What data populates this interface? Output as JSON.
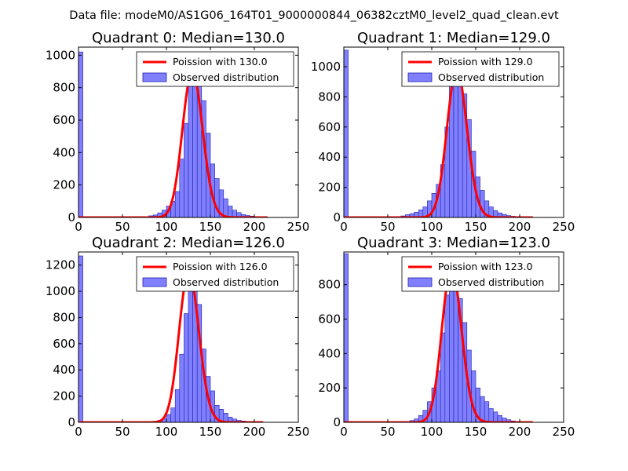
{
  "figure_title": "Data file: modeM0/AS1G06_164T01_9000000844_06382cztM0_level2_quad_clean.evt",
  "colors": {
    "bar_fill": "#8080ff",
    "bar_edge": "#1f1fb0",
    "line": "#ff0000",
    "axes": "#000000"
  },
  "chart_data": [
    {
      "type": "bar",
      "title": "Quadrant 0: Median=130.0",
      "median": 130.0,
      "xlim": [
        0,
        250
      ],
      "ylim": [
        0,
        1050
      ],
      "xticks": [
        0,
        50,
        100,
        150,
        200,
        250
      ],
      "yticks": [
        0,
        200,
        400,
        600,
        800,
        1000
      ],
      "bin_width": 5,
      "hist": {
        "name": "Observed distribution",
        "bins": [
          0,
          80,
          85,
          90,
          95,
          100,
          105,
          110,
          115,
          120,
          125,
          130,
          135,
          140,
          145,
          150,
          155,
          160,
          165,
          170,
          175,
          180,
          185,
          190,
          195,
          200,
          205,
          210
        ],
        "values": [
          1020,
          10,
          15,
          28,
          45,
          70,
          100,
          160,
          360,
          580,
          820,
          900,
          860,
          720,
          520,
          330,
          240,
          170,
          115,
          70,
          45,
          30,
          18,
          12,
          8,
          5,
          3,
          2
        ]
      },
      "line": {
        "name": "Poission with 130.0",
        "mean": 130.0,
        "x_range": [
          0,
          215
        ]
      },
      "legend": {
        "loc": "upper right",
        "entries": [
          "Poission with 130.0",
          "Observed distribution"
        ]
      }
    },
    {
      "type": "bar",
      "title": "Quadrant 1: Median=129.0",
      "median": 129.0,
      "xlim": [
        0,
        250
      ],
      "ylim": [
        0,
        1130
      ],
      "xticks": [
        0,
        50,
        100,
        150,
        200,
        250
      ],
      "yticks": [
        0,
        200,
        400,
        600,
        800,
        1000
      ],
      "bin_width": 5,
      "hist": {
        "name": "Observed distribution",
        "bins": [
          0,
          60,
          65,
          70,
          75,
          80,
          85,
          90,
          95,
          100,
          105,
          110,
          115,
          120,
          125,
          130,
          135,
          140,
          145,
          150,
          155,
          160,
          165,
          170,
          175,
          180,
          185,
          190,
          195,
          200
        ],
        "values": [
          1110,
          5,
          10,
          18,
          25,
          35,
          50,
          70,
          110,
          160,
          220,
          350,
          600,
          880,
          970,
          980,
          820,
          650,
          440,
          270,
          180,
          110,
          70,
          45,
          30,
          20,
          12,
          8,
          5,
          3
        ]
      },
      "line": {
        "name": "Poission with 129.0",
        "mean": 129.0,
        "x_range": [
          0,
          215
        ]
      },
      "legend": {
        "loc": "upper right",
        "entries": [
          "Poission with 129.0",
          "Observed distribution"
        ]
      }
    },
    {
      "type": "bar",
      "title": "Quadrant 2: Median=126.0",
      "median": 126.0,
      "xlim": [
        0,
        250
      ],
      "ylim": [
        0,
        1300
      ],
      "xticks": [
        0,
        50,
        100,
        150,
        200,
        250
      ],
      "yticks": [
        0,
        200,
        400,
        600,
        800,
        1000,
        1200
      ],
      "bin_width": 5,
      "hist": {
        "name": "Observed distribution",
        "bins": [
          0,
          85,
          90,
          95,
          100,
          105,
          110,
          115,
          120,
          125,
          130,
          135,
          140,
          145,
          150,
          155,
          160,
          165,
          170,
          175,
          180,
          185,
          190,
          195,
          200,
          205
        ],
        "values": [
          1270,
          8,
          15,
          30,
          60,
          110,
          250,
          520,
          830,
          1150,
          1120,
          900,
          560,
          350,
          240,
          130,
          100,
          70,
          40,
          25,
          15,
          10,
          6,
          4,
          2,
          1
        ]
      },
      "line": {
        "name": "Poission with 126.0",
        "mean": 126.0,
        "x_range": [
          0,
          210
        ]
      },
      "legend": {
        "loc": "upper right",
        "entries": [
          "Poission with 126.0",
          "Observed distribution"
        ]
      }
    },
    {
      "type": "bar",
      "title": "Quadrant 3: Median=123.0",
      "median": 123.0,
      "xlim": [
        0,
        250
      ],
      "ylim": [
        0,
        990
      ],
      "xticks": [
        0,
        50,
        100,
        150,
        200,
        250
      ],
      "yticks": [
        0,
        200,
        400,
        600,
        800
      ],
      "bin_width": 5,
      "hist": {
        "name": "Observed distribution",
        "bins": [
          0,
          75,
          80,
          85,
          90,
          95,
          100,
          105,
          110,
          115,
          120,
          125,
          130,
          135,
          140,
          145,
          150,
          155,
          160,
          165,
          170,
          175,
          180,
          185,
          190,
          195
        ],
        "values": [
          980,
          10,
          20,
          40,
          70,
          120,
          200,
          300,
          520,
          740,
          880,
          900,
          720,
          580,
          420,
          300,
          200,
          150,
          120,
          80,
          60,
          40,
          25,
          15,
          8,
          4
        ]
      },
      "line": {
        "name": "Poission with 123.0",
        "mean": 123.0,
        "x_range": [
          0,
          215
        ]
      },
      "legend": {
        "loc": "upper right",
        "entries": [
          "Poission with 123.0",
          "Observed distribution"
        ]
      }
    }
  ]
}
